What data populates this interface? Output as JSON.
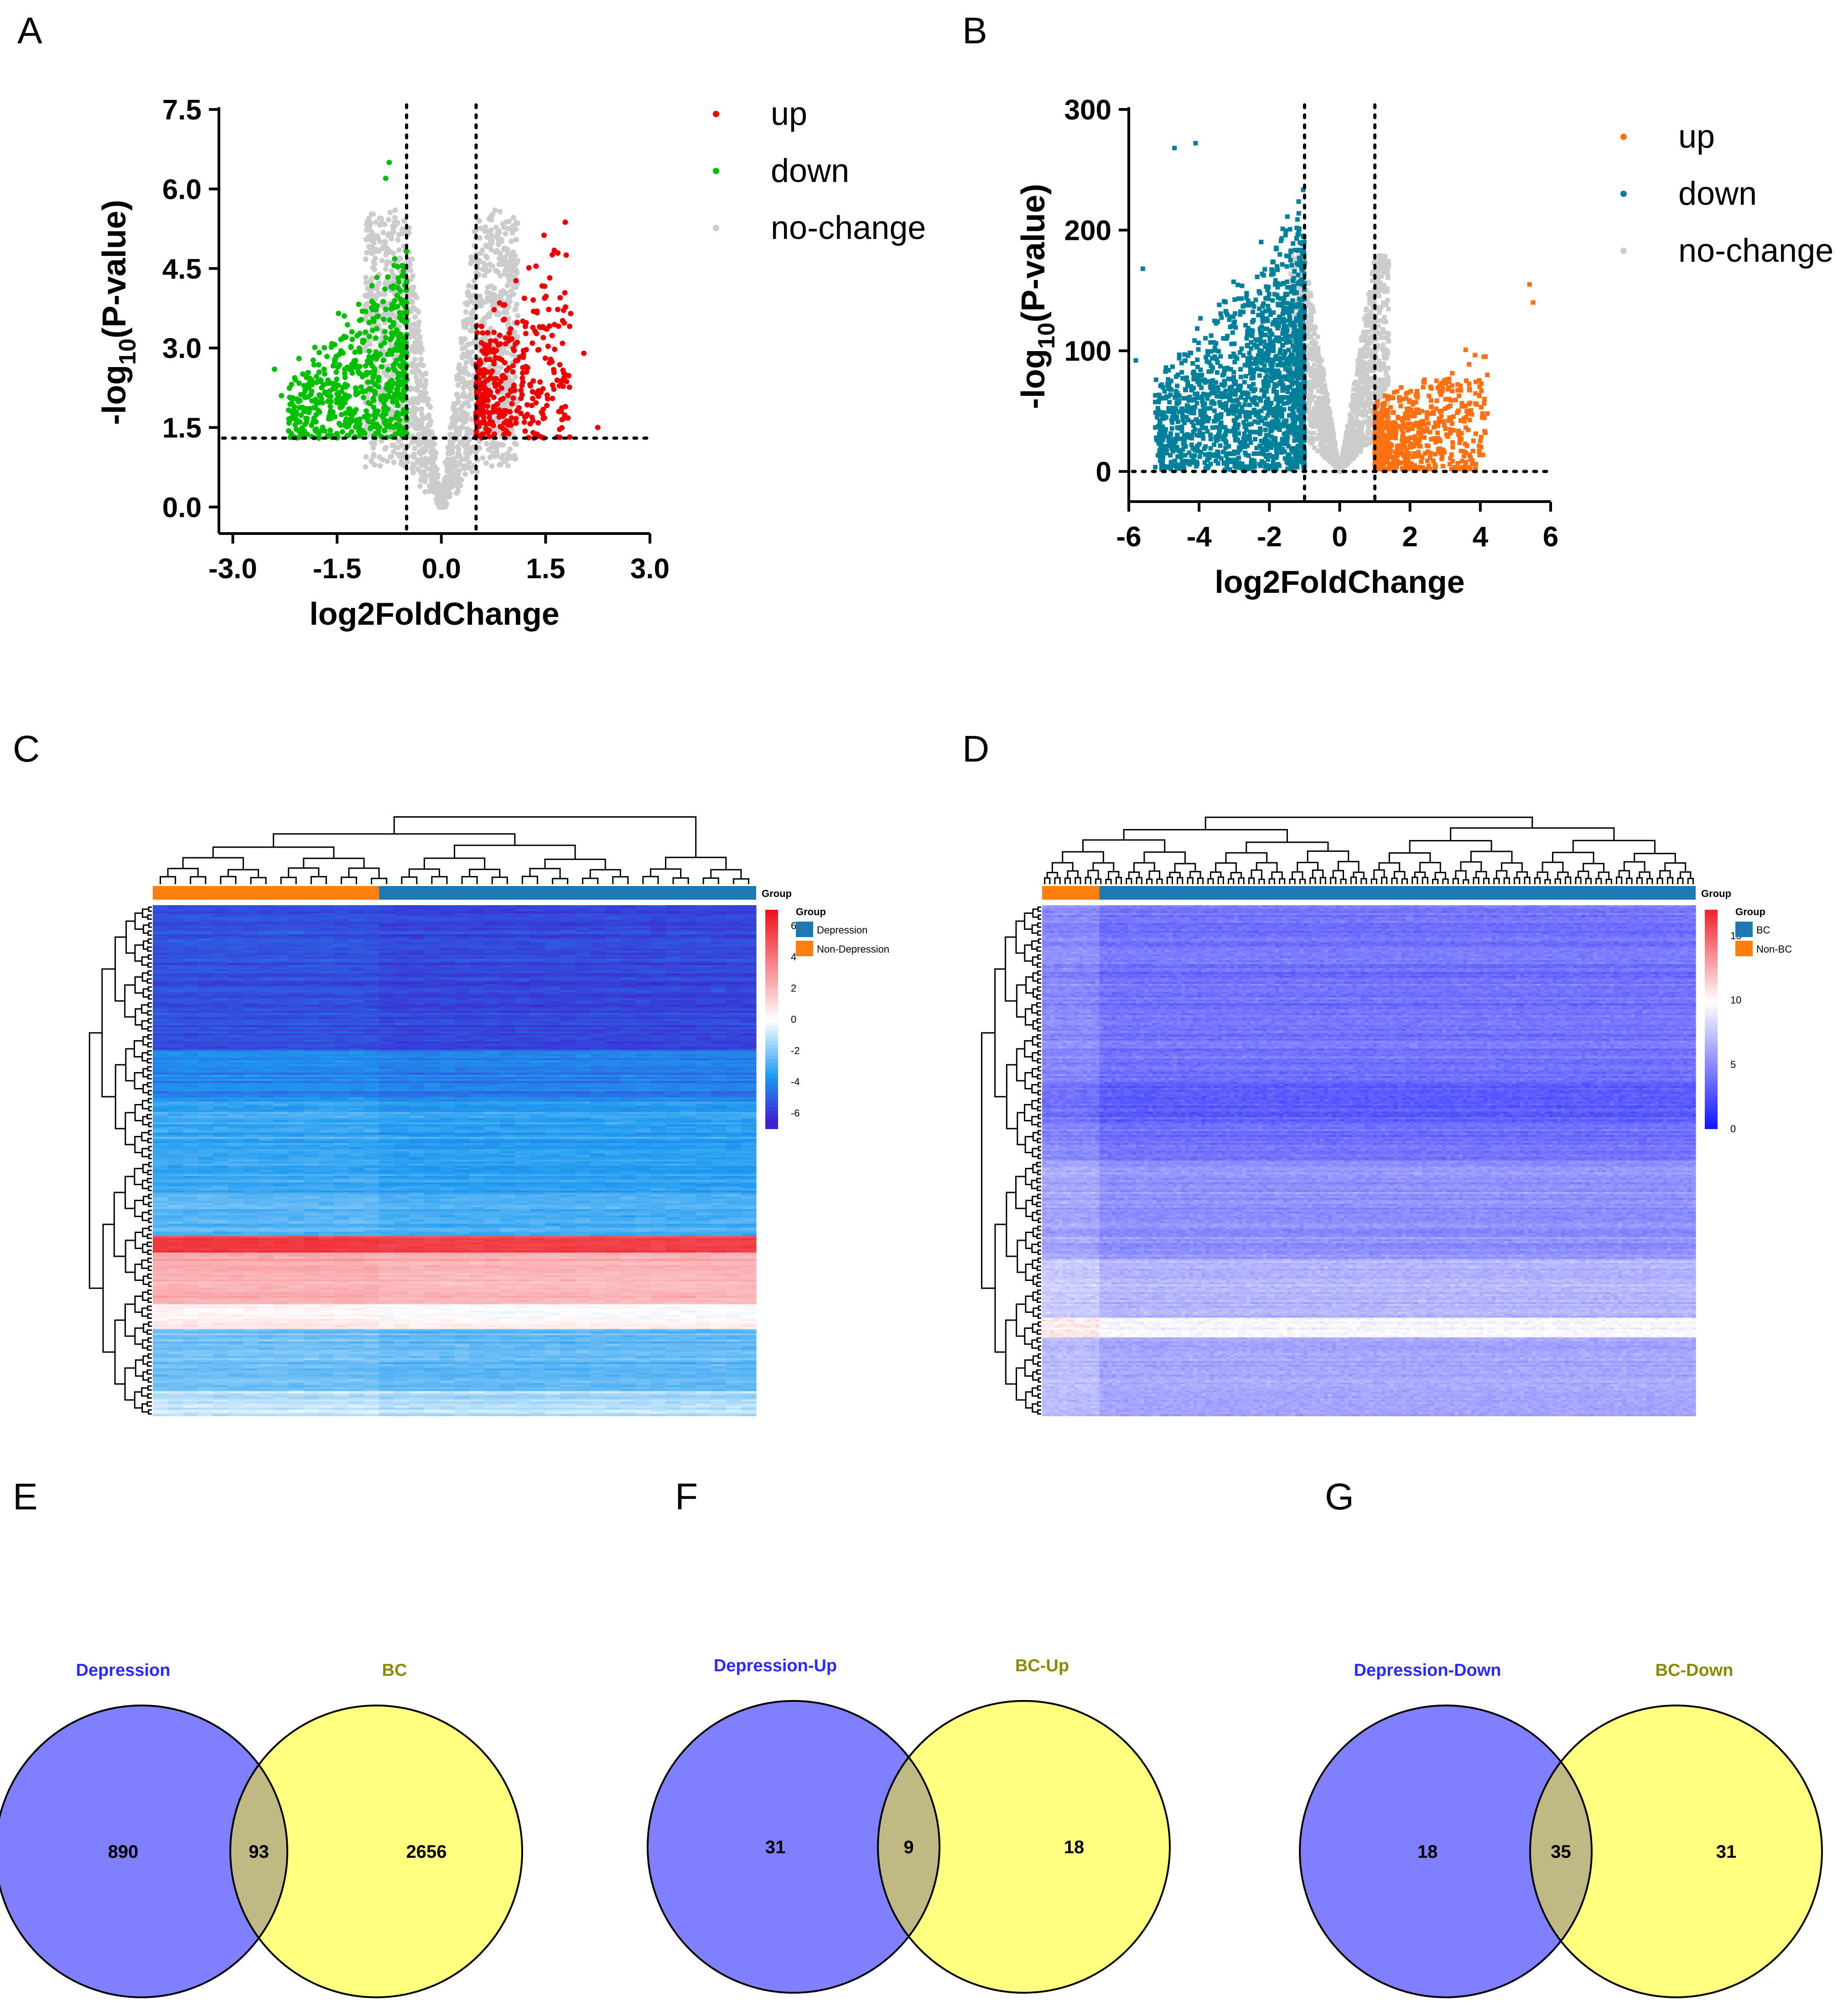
{
  "panel_letters": [
    "A",
    "B",
    "C",
    "D",
    "E",
    "F",
    "G"
  ],
  "colors": {
    "up_A": "#ee0000",
    "down_A": "#00c000",
    "up_B": "#ff7010",
    "down_B": "#00809a",
    "nochange": "#cccccc",
    "heat_high": "#f0252e",
    "heat_mid": "#ffffff",
    "heat_low": "#3f1fd0",
    "heat_low_D": "#1010ff",
    "group_case": "#1f77b4",
    "group_ctrl": "#ff7f0e",
    "venn_left": "#8080ff",
    "venn_right": "#ffff80",
    "venn_overlap": "#c0b983",
    "venn_left_label": "#2a2aff",
    "venn_right_label": "#8a8a00"
  },
  "chart_data": [
    {
      "panel": "A",
      "type": "scatter",
      "xlabel": "log2FoldChange",
      "ylabel_main": "-log",
      "ylabel_sub": "10",
      "ylabel_tail": "(P-value)",
      "xlim": [
        -3.2,
        3.0
      ],
      "ylim": [
        -0.5,
        7.5
      ],
      "xticks": [
        -3.0,
        -1.5,
        0.0,
        1.5,
        3.0
      ],
      "xtick_labels": [
        "-3.0",
        "-1.5",
        "0.0",
        "1.5",
        "3.0"
      ],
      "yticks": [
        0.0,
        1.5,
        3.0,
        4.5,
        6.0,
        7.5
      ],
      "ytick_labels": [
        "0.0",
        "1.5",
        "3.0",
        "4.5",
        "6.0",
        "7.5"
      ],
      "fc_threshold": [
        -0.5,
        0.5
      ],
      "p_threshold": 1.3,
      "legend": [
        "up",
        "down",
        "no-change"
      ],
      "series": [
        {
          "name": "up",
          "x_range": [
            0.5,
            2.45
          ],
          "y_range": [
            1.3,
            5.4
          ],
          "n": 380,
          "outliers": [
            [
              2.05,
              2.9
            ],
            [
              1.6,
              2.3
            ],
            [
              2.25,
              1.5
            ],
            [
              1.2,
              1.7
            ]
          ]
        },
        {
          "name": "down",
          "x_range": [
            -2.5,
            -0.5
          ],
          "y_range": [
            1.3,
            6.5
          ],
          "n": 650,
          "outliers": [
            [
              -2.4,
              2.6
            ],
            [
              -2.3,
              2.1
            ],
            [
              -2.1,
              2.4
            ],
            [
              -0.8,
              6.2
            ],
            [
              -0.75,
              6.5
            ]
          ]
        },
        {
          "name": "no-change",
          "x_range": [
            -1.8,
            2.4
          ],
          "y_range": [
            0.0,
            5.6
          ],
          "n": 1600
        }
      ]
    },
    {
      "panel": "B",
      "type": "scatter",
      "xlabel": "log2FoldChange",
      "ylabel_main": "-log",
      "ylabel_sub": "10",
      "ylabel_tail": "(P-value)",
      "xlim": [
        -6.0,
        6.0
      ],
      "ylim": [
        -25,
        300
      ],
      "xticks": [
        -6,
        -4,
        -2,
        0,
        2,
        4,
        6
      ],
      "xtick_labels": [
        "-6",
        "-4",
        "-2",
        "0",
        "2",
        "4",
        "6"
      ],
      "yticks": [
        0,
        100,
        200,
        300
      ],
      "ytick_labels": [
        "0",
        "100",
        "200",
        "300"
      ],
      "fc_threshold": [
        -1,
        1
      ],
      "p_threshold": 1.3,
      "legend": [
        "up",
        "down",
        "no-change"
      ],
      "series": [
        {
          "name": "up",
          "x_range": [
            1.0,
            5.5
          ],
          "y_range": [
            0,
            155
          ],
          "n": 650,
          "outliers": [
            [
              5.4,
              155
            ],
            [
              5.5,
              140
            ],
            [
              4.1,
              95
            ],
            [
              4.2,
              80
            ],
            [
              4.2,
              48
            ]
          ]
        },
        {
          "name": "down",
          "x_range": [
            -6.0,
            -1.0
          ],
          "y_range": [
            0,
            275
          ],
          "n": 1700,
          "outliers": [
            [
              -4.7,
              268
            ],
            [
              -4.1,
              272
            ],
            [
              -5.6,
              168
            ],
            [
              -5.8,
              92
            ]
          ]
        },
        {
          "name": "no-change",
          "x_range": [
            -1.0,
            1.0
          ],
          "y_range": [
            0,
            185
          ],
          "n": 1500
        }
      ]
    },
    {
      "panel": "C",
      "type": "heatmap",
      "legend_title": "Group",
      "annotation_label": "Group",
      "groups": [
        "Depression",
        "Non-Depression"
      ],
      "scale_ticks": [
        6,
        4,
        2,
        0,
        -2,
        -4,
        -6
      ],
      "scale_tick_labels": [
        "6",
        "4",
        "2",
        "0",
        "-2",
        "-4",
        "-6"
      ],
      "value_range": [
        -7,
        7
      ],
      "n_columns": 40,
      "n_control_columns": 15,
      "blocks": [
        {
          "rows": 70,
          "mean": -5.6
        },
        {
          "rows": 25,
          "mean": -4.2
        },
        {
          "rows": 45,
          "mean": -3.3
        },
        {
          "rows": 20,
          "mean": -2.8
        },
        {
          "rows": 8,
          "mean": 5.6
        },
        {
          "rows": 25,
          "mean": 2.2
        },
        {
          "rows": 12,
          "mean": 0.2
        },
        {
          "rows": 30,
          "mean": -2.4
        },
        {
          "rows": 12,
          "mean": -1.2
        }
      ]
    },
    {
      "panel": "D",
      "type": "heatmap",
      "legend_title": "Group",
      "annotation_label": "Group",
      "groups": [
        "BC",
        "Non-BC"
      ],
      "scale_ticks": [
        15,
        10,
        5,
        0
      ],
      "scale_tick_labels": [
        "15",
        "10",
        "5",
        "0"
      ],
      "value_range": [
        0,
        17
      ],
      "n_columns": 160,
      "n_control_columns": 14,
      "blocks": [
        {
          "rows": 90,
          "mean": 4.2
        },
        {
          "rows": 20,
          "mean": 3.3
        },
        {
          "rows": 20,
          "mean": 4.0
        },
        {
          "rows": 50,
          "mean": 5.4
        },
        {
          "rows": 30,
          "mean": 6.8
        },
        {
          "rows": 10,
          "mean": 9.5
        },
        {
          "rows": 40,
          "mean": 6.3
        }
      ]
    },
    {
      "panel": "E",
      "type": "venn",
      "left_label": "Depression",
      "right_label": "BC",
      "left_only": 890,
      "overlap": 93,
      "right_only": 2656
    },
    {
      "panel": "F",
      "type": "venn",
      "left_label": "Depression-Up",
      "right_label": "BC-Up",
      "left_only": 31,
      "overlap": 9,
      "right_only": 18
    },
    {
      "panel": "G",
      "type": "venn",
      "left_label": "Depression-Down",
      "right_label": "BC-Down",
      "left_only": 18,
      "overlap": 35,
      "right_only": 31
    }
  ]
}
